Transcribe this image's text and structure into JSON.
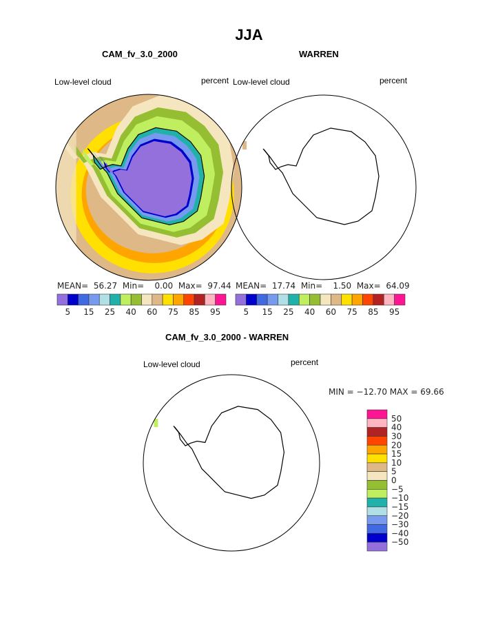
{
  "title": "JJA",
  "panels": [
    {
      "title": "CAM_fv_3.0_2000",
      "left_label": "Low-level cloud",
      "right_label": "percent",
      "mean": "MEAN=",
      "mean_val": "56.27",
      "min": "Min=",
      "min_val": "0.00",
      "max": "Max=",
      "max_val": "97.44"
    },
    {
      "title": "WARREN",
      "left_label": "Low-level cloud",
      "right_label": "percent",
      "mean": "MEAN=",
      "mean_val": "17.74",
      "min": "Min=",
      "min_val": "1.50",
      "max": "Max=",
      "max_val": "64.09"
    },
    {
      "title": "CAM_fv_3.0_2000 - WARREN",
      "left_label": "Low-level cloud",
      "right_label": "percent",
      "minmax": "MIN = −12.70 MAX =  69.66"
    }
  ],
  "chart_data": {
    "type": "heatmap",
    "projection": "south polar stereographic",
    "colors": [
      "#9370DB",
      "#0000CD",
      "#4169E1",
      "#7799EE",
      "#B0E0E6",
      "#20B2AA",
      "#BFEF5F",
      "#96BE32",
      "#F5E6C0",
      "#DEB887",
      "#FFE000",
      "#FFA500",
      "#FF4500",
      "#B22222",
      "#FFB6C1",
      "#FF1493"
    ],
    "levels_labels": [
      "5",
      "15",
      "25",
      "40",
      "60",
      "75",
      "85",
      "95"
    ],
    "diff_levels": [
      "50",
      "40",
      "30",
      "20",
      "15",
      "10",
      "5",
      "0",
      "−5",
      "−10",
      "−15",
      "−20",
      "−30",
      "−40",
      "−50"
    ]
  }
}
